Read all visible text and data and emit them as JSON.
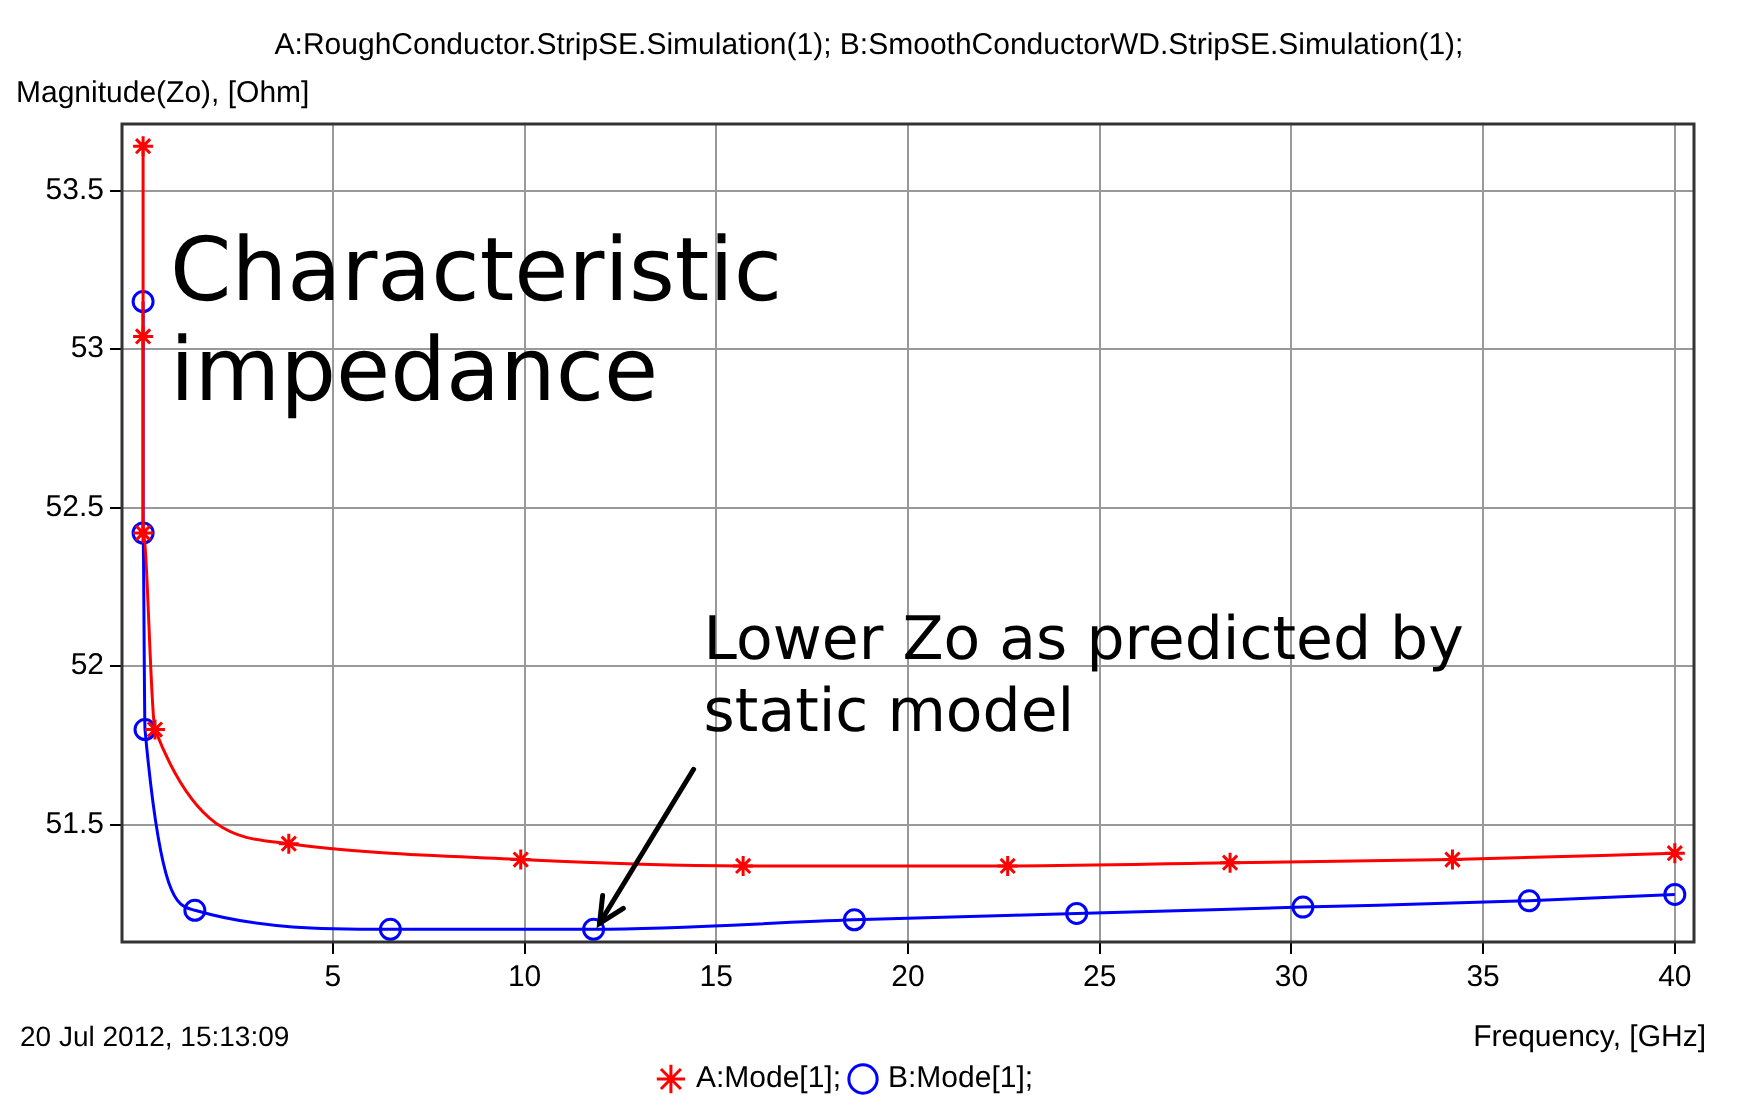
{
  "chart_data": {
    "type": "line",
    "title": "A:RoughConductor.StripSE.Simulation(1); B:SmoothConductorWD.StripSE.Simulation(1);",
    "ylabel": "Magnitude(Zo), [Ohm]",
    "xlabel": "Frequency, [GHz]",
    "annotations": [
      "Characteristic impedance",
      {
        "text": "Lower Zo as predicted by static model",
        "x": 11.8,
        "y": 51.17
      },
      "20 Jul 2012, 15:13:09"
    ],
    "series": [
      {
        "name": "A:Mode[1];",
        "color": "#ff0000",
        "marker": "cross",
        "x": [
          0.05,
          0.05,
          0.05,
          0.36,
          3.85,
          9.9,
          15.7,
          22.6,
          28.4,
          34.2,
          40
        ],
        "values": [
          53.64,
          53.04,
          52.42,
          51.8,
          51.44,
          51.39,
          51.37,
          51.37,
          51.38,
          51.39,
          51.41
        ]
      },
      {
        "name": "B:Mode[1];",
        "color": "#0000ff",
        "marker": "circle",
        "x": [
          0.05,
          0.05,
          0.1,
          1.4,
          6.5,
          11.8,
          18.6,
          24.4,
          30.3,
          36.2,
          40
        ],
        "values": [
          53.15,
          52.42,
          51.8,
          51.23,
          51.17,
          51.17,
          51.2,
          51.22,
          51.24,
          51.26,
          51.28
        ]
      }
    ],
    "xlim": [
      -0.5,
      40.5
    ],
    "xticks": [
      5,
      10,
      15,
      20,
      25,
      30,
      35,
      40
    ],
    "ylim": [
      51.13,
      53.71
    ],
    "yticks": [
      51.5,
      52,
      52.5,
      53,
      53.5
    ],
    "grid": true,
    "legend": "bottom"
  }
}
